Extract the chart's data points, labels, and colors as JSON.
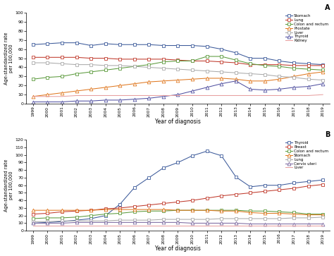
{
  "years": [
    1999,
    2000,
    2001,
    2002,
    2003,
    2004,
    2005,
    2006,
    2007,
    2008,
    2009,
    2010,
    2011,
    2012,
    2013,
    2014,
    2015,
    2016,
    2017,
    2018,
    2019
  ],
  "panel_A": {
    "title": "A",
    "xlabel": "Year of diagnosis",
    "ylabel": "Age-standardized rate\nper 100,000",
    "ylim": [
      0,
      100
    ],
    "yticks": [
      0,
      10,
      20,
      30,
      40,
      50,
      60,
      70,
      80,
      90,
      100
    ],
    "series": [
      {
        "name": "Stomach",
        "color": "#3C5A9A",
        "marker": "s",
        "markersize": 3,
        "data": [
          65,
          66,
          67,
          67,
          64,
          66,
          65,
          65,
          65,
          64,
          64,
          64,
          63,
          60,
          56,
          50,
          50,
          47,
          45,
          44,
          43
        ]
      },
      {
        "name": "Lung",
        "color": "#C0392B",
        "marker": "s",
        "markersize": 3,
        "data": [
          51,
          51,
          51,
          51,
          50,
          50,
          49,
          49,
          49,
          49,
          48,
          47,
          47,
          46,
          45,
          43,
          43,
          43,
          42,
          42,
          42
        ]
      },
      {
        "name": "Colon and rectum",
        "color": "#5B9A3C",
        "marker": "s",
        "markersize": 3,
        "data": [
          27,
          29,
          30,
          33,
          35,
          37,
          39,
          41,
          43,
          46,
          47,
          47,
          52,
          52,
          48,
          44,
          42,
          41,
          39,
          38,
          37
        ]
      },
      {
        "name": "Prostate",
        "color": "#E07820",
        "marker": "^",
        "markersize": 3.5,
        "data": [
          8,
          10,
          12,
          14,
          16,
          18,
          20,
          22,
          24,
          25,
          26,
          27,
          28,
          28,
          27,
          25,
          25,
          27,
          30,
          33,
          35
        ]
      },
      {
        "name": "Liver",
        "color": "#AAAAAA",
        "marker": "s",
        "markersize": 3,
        "data": [
          45,
          45,
          44,
          43,
          43,
          42,
          42,
          41,
          40,
          39,
          38,
          37,
          36,
          35,
          34,
          33,
          32,
          30,
          29,
          27,
          26
        ]
      },
      {
        "name": "Thyroid",
        "color": "#5050A0",
        "marker": "^",
        "markersize": 3.5,
        "data": [
          2,
          2,
          2,
          3,
          3,
          4,
          4,
          5,
          6,
          8,
          10,
          14,
          18,
          22,
          25,
          16,
          15,
          16,
          18,
          19,
          22
        ]
      },
      {
        "name": "Kidney",
        "color": "#E8A0A0",
        "marker": null,
        "markersize": 0,
        "data": [
          8,
          8,
          8,
          9,
          9,
          9,
          9,
          9,
          9,
          9,
          9,
          9,
          9,
          9,
          9,
          9,
          9,
          9,
          9,
          9,
          10
        ]
      }
    ]
  },
  "panel_B": {
    "title": "B",
    "xlabel": "Year of diagnosis",
    "ylabel": "Age-standardized rate\nper 100,000",
    "ylim": [
      0,
      120
    ],
    "yticks": [
      0,
      10,
      20,
      30,
      40,
      50,
      60,
      70,
      80,
      90,
      100,
      110,
      120
    ],
    "series": [
      {
        "name": "Thyroid",
        "color": "#3C5A9A",
        "marker": "s",
        "markersize": 3,
        "data": [
          10,
          11,
          12,
          14,
          16,
          20,
          35,
          57,
          70,
          83,
          90,
          99,
          105,
          99,
          71,
          58,
          60,
          60,
          63,
          65,
          67
        ]
      },
      {
        "name": "Breast",
        "color": "#C0392B",
        "marker": "s",
        "markersize": 3,
        "data": [
          22,
          23,
          25,
          26,
          27,
          29,
          30,
          32,
          34,
          36,
          38,
          40,
          43,
          46,
          48,
          50,
          52,
          54,
          56,
          59,
          61
        ]
      },
      {
        "name": "Colon and rectum",
        "color": "#5B9A3C",
        "marker": "s",
        "markersize": 3,
        "data": [
          16,
          17,
          17,
          18,
          20,
          22,
          23,
          25,
          26,
          26,
          27,
          27,
          27,
          27,
          27,
          26,
          26,
          25,
          24,
          22,
          22
        ]
      },
      {
        "name": "Stomach",
        "color": "#E07820",
        "marker": "^",
        "markersize": 3.5,
        "data": [
          27,
          27,
          27,
          27,
          27,
          28,
          28,
          28,
          28,
          28,
          27,
          27,
          27,
          26,
          26,
          24,
          23,
          23,
          22,
          21,
          21
        ]
      },
      {
        "name": "Lung",
        "color": "#AAAAAA",
        "marker": "s",
        "markersize": 3,
        "data": [
          12,
          12,
          13,
          13,
          13,
          13,
          14,
          14,
          14,
          15,
          15,
          15,
          15,
          16,
          16,
          16,
          16,
          16,
          17,
          17,
          18
        ]
      },
      {
        "name": "Cervix uteri",
        "color": "#7B68A0",
        "marker": "^",
        "markersize": 3.5,
        "data": [
          10,
          10,
          10,
          11,
          11,
          11,
          11,
          11,
          11,
          11,
          11,
          10,
          10,
          10,
          10,
          9,
          9,
          9,
          9,
          9,
          9
        ]
      },
      {
        "name": "Liver",
        "color": "#E8A0A0",
        "marker": null,
        "markersize": 0,
        "data": [
          7,
          7,
          7,
          7,
          7,
          7,
          7,
          7,
          7,
          7,
          7,
          7,
          7,
          7,
          7,
          7,
          7,
          7,
          7,
          7,
          7
        ]
      }
    ]
  }
}
